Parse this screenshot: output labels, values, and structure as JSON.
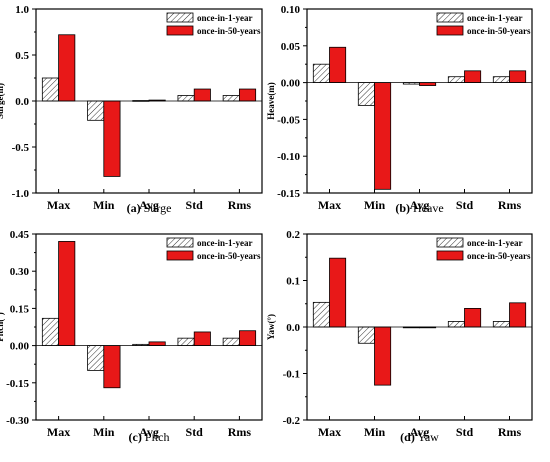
{
  "legend": {
    "series1": "once-in-1-year",
    "series2": "once-in-50-years"
  },
  "colors": {
    "series1_fill": "#ffffff",
    "series1_hatch": "#333333",
    "series2_fill": "#e81818",
    "axis": "#000000"
  },
  "chart_data": [
    {
      "type": "bar",
      "caption_letter": "(a)",
      "caption_text": "Surge",
      "ylabel": "Surge(m)",
      "categories": [
        "Max",
        "Min",
        "Avg",
        "Std",
        "Rms"
      ],
      "ylim": [
        -1.0,
        1.0
      ],
      "yticks": [
        -1.0,
        -0.5,
        0.0,
        0.5,
        1.0
      ],
      "ytick_labels": [
        "-1.0",
        "-0.5",
        "0.0",
        "0.5",
        "1.0"
      ],
      "series": [
        {
          "name": "once-in-1-year",
          "values": [
            0.25,
            -0.21,
            0.005,
            0.06,
            0.06
          ]
        },
        {
          "name": "once-in-50-years",
          "values": [
            0.72,
            -0.82,
            0.01,
            0.13,
            0.13
          ]
        }
      ]
    },
    {
      "type": "bar",
      "caption_letter": "(b)",
      "caption_text": "Heave",
      "ylabel": "Heave(m)",
      "categories": [
        "Max",
        "Min",
        "Avg",
        "Std",
        "Rms"
      ],
      "ylim": [
        -0.15,
        0.1
      ],
      "yticks": [
        -0.15,
        -0.1,
        -0.05,
        0.0,
        0.05,
        0.1
      ],
      "ytick_labels": [
        "-0.15",
        "-0.10",
        "-0.05",
        "0.00",
        "0.05",
        "0.10"
      ],
      "series": [
        {
          "name": "once-in-1-year",
          "values": [
            0.025,
            -0.031,
            -0.002,
            0.008,
            0.008
          ]
        },
        {
          "name": "once-in-50-years",
          "values": [
            0.048,
            -0.145,
            -0.004,
            0.016,
            0.016
          ]
        }
      ]
    },
    {
      "type": "bar",
      "caption_letter": "(c)",
      "caption_text": "Pitch",
      "ylabel": "Pitch(°)",
      "categories": [
        "Max",
        "Min",
        "Avg",
        "Std",
        "Rms"
      ],
      "ylim": [
        -0.3,
        0.45
      ],
      "yticks": [
        -0.3,
        -0.15,
        0.0,
        0.15,
        0.3,
        0.45
      ],
      "ytick_labels": [
        "-0.30",
        "-0.15",
        "0.00",
        "0.15",
        "0.30",
        "0.45"
      ],
      "series": [
        {
          "name": "once-in-1-year",
          "values": [
            0.11,
            -0.1,
            0.005,
            0.03,
            0.03
          ]
        },
        {
          "name": "once-in-50-years",
          "values": [
            0.42,
            -0.17,
            0.015,
            0.055,
            0.06
          ]
        }
      ]
    },
    {
      "type": "bar",
      "caption_letter": "(d)",
      "caption_text": "Yaw",
      "ylabel": "Yaw(°)",
      "categories": [
        "Max",
        "Min",
        "Avg",
        "Std",
        "Rms"
      ],
      "ylim": [
        -0.2,
        0.2
      ],
      "yticks": [
        -0.2,
        -0.1,
        0.0,
        0.1,
        0.2
      ],
      "ytick_labels": [
        "-0.2",
        "-0.1",
        "0.0",
        "0.1",
        "0.2"
      ],
      "series": [
        {
          "name": "once-in-1-year",
          "values": [
            0.053,
            -0.035,
            0.0,
            0.012,
            0.012
          ]
        },
        {
          "name": "once-in-50-years",
          "values": [
            0.148,
            -0.125,
            0.0,
            0.04,
            0.052
          ]
        }
      ]
    }
  ]
}
